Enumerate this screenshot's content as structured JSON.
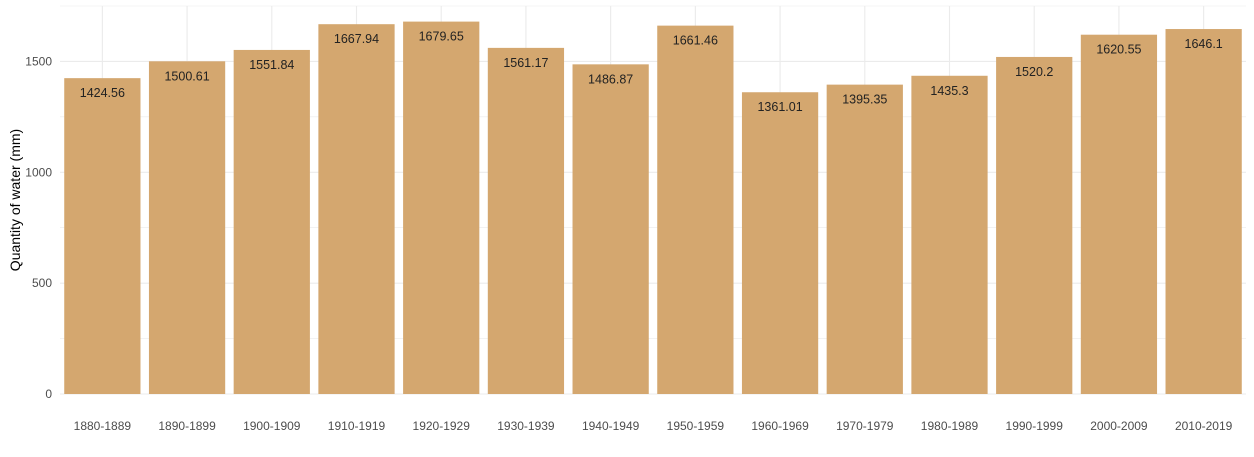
{
  "chart_data": {
    "type": "bar",
    "title": "",
    "xlabel": "",
    "ylabel": "Quantity of water (mm)",
    "categories": [
      "1880-1889",
      "1890-1899",
      "1900-1909",
      "1910-1919",
      "1920-1929",
      "1930-1939",
      "1940-1949",
      "1950-1959",
      "1960-1969",
      "1970-1979",
      "1980-1989",
      "1990-1999",
      "2000-2009",
      "2010-2019"
    ],
    "values": [
      1424.56,
      1500.61,
      1551.84,
      1667.94,
      1679.65,
      1561.17,
      1486.87,
      1661.46,
      1361.01,
      1395.35,
      1435.3,
      1520.2,
      1620.55,
      1646.1
    ],
    "value_labels": [
      "1424.56",
      "1500.61",
      "1551.84",
      "1667.94",
      "1679.65",
      "1561.17",
      "1486.87",
      "1661.46",
      "1361.01",
      "1395.35",
      "1435.3",
      "1520.2",
      "1620.55",
      "1646.1"
    ],
    "ylim": [
      0,
      1750
    ],
    "yticks": [
      0,
      500,
      1000,
      1500
    ],
    "ytick_labels": [
      "0",
      "500",
      "1000",
      "1500"
    ],
    "grid": true,
    "legend": "none",
    "bar_color": "#d4a76f",
    "grid_color": "#ebebeb"
  }
}
